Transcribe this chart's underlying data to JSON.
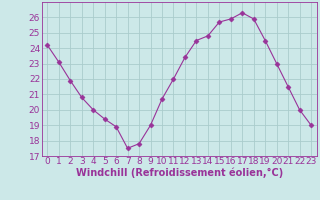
{
  "x": [
    0,
    1,
    2,
    3,
    4,
    5,
    6,
    7,
    8,
    9,
    10,
    11,
    12,
    13,
    14,
    15,
    16,
    17,
    18,
    19,
    20,
    21,
    22,
    23
  ],
  "y": [
    24.2,
    23.1,
    21.9,
    20.8,
    20.0,
    19.4,
    18.9,
    17.5,
    17.8,
    19.0,
    20.7,
    22.0,
    23.4,
    24.5,
    24.8,
    25.7,
    25.9,
    26.3,
    25.9,
    24.5,
    23.0,
    21.5,
    20.0,
    19.0
  ],
  "xlabel": "Windchill (Refroidissement éolien,°C)",
  "ylim": [
    17,
    27
  ],
  "xlim_min": -0.5,
  "xlim_max": 23.5,
  "yticks": [
    17,
    18,
    19,
    20,
    21,
    22,
    23,
    24,
    25,
    26
  ],
  "xticks": [
    0,
    1,
    2,
    3,
    4,
    5,
    6,
    7,
    8,
    9,
    10,
    11,
    12,
    13,
    14,
    15,
    16,
    17,
    18,
    19,
    20,
    21,
    22,
    23
  ],
  "line_color": "#993399",
  "marker": "D",
  "marker_size": 2.5,
  "bg_color": "#cce8e8",
  "grid_color": "#aacccc",
  "xlabel_color": "#993399",
  "tick_label_color": "#993399",
  "xlabel_fontsize": 7,
  "tick_fontsize": 6.5,
  "xlabel_fontweight": "bold"
}
